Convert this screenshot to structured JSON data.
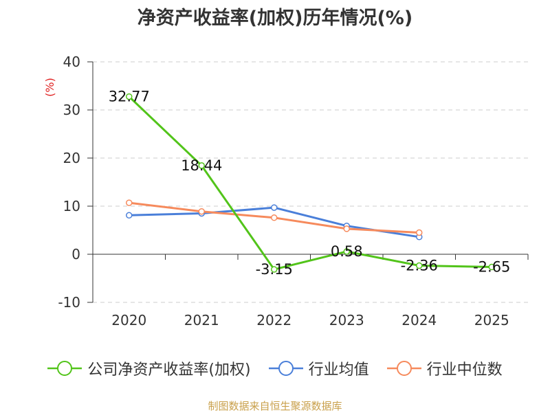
{
  "chart_data": {
    "type": "line",
    "title": "净资产收益率(加权)历年情况(%)",
    "ylabel": "(%)",
    "xlabel": "",
    "categories": [
      "2020",
      "2021",
      "2022",
      "2023",
      "2024",
      "2025"
    ],
    "ylim": [
      -10,
      40
    ],
    "yticks": [
      -10,
      0,
      10,
      20,
      30,
      40
    ],
    "grid": true,
    "legend_position": "bottom",
    "series": [
      {
        "name": "公司净资产收益率(加权)",
        "color": "#52c41a",
        "values": [
          32.77,
          18.44,
          -3.15,
          0.58,
          -2.36,
          -2.65
        ],
        "labels": [
          "32.77",
          "18.44",
          "-3.15",
          "0.58",
          "-2.36",
          "-2.65"
        ],
        "show_labels": true
      },
      {
        "name": "行业均值",
        "color": "#4a7fd9",
        "values": [
          8.1,
          8.5,
          9.7,
          5.9,
          3.6,
          null
        ],
        "show_labels": false
      },
      {
        "name": "行业中位数",
        "color": "#f68a5c",
        "values": [
          10.7,
          8.9,
          7.6,
          5.3,
          4.5,
          null
        ],
        "show_labels": false
      }
    ]
  },
  "source": "制图数据来自恒生聚源数据库"
}
